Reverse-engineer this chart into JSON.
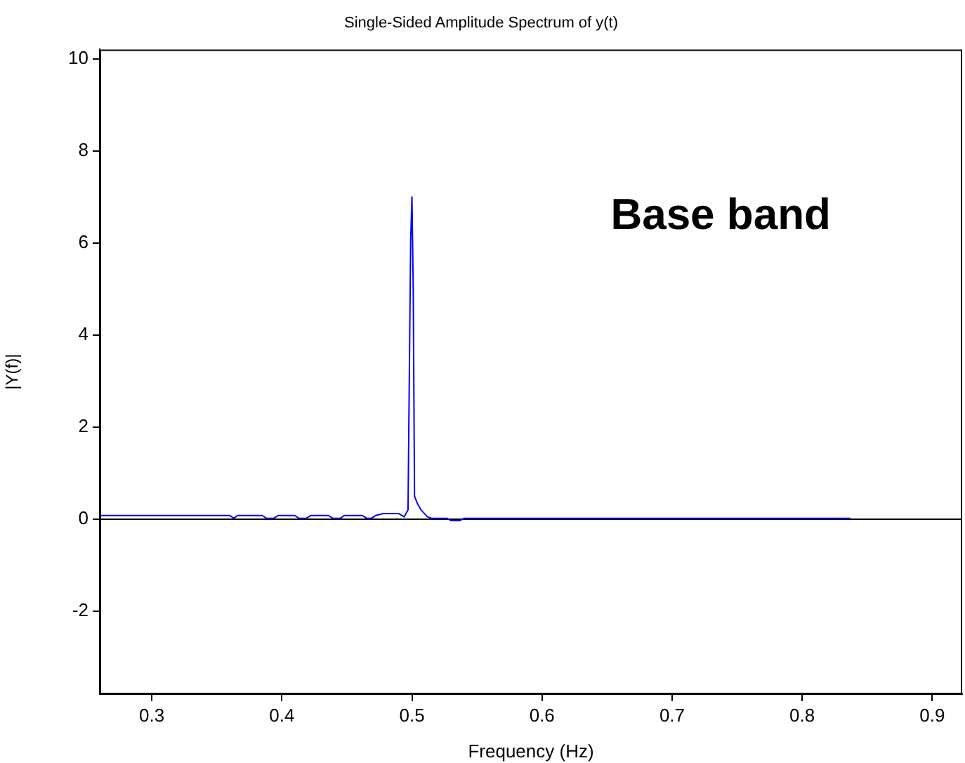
{
  "chart_data": {
    "type": "line",
    "title": "Single-Sided Amplitude Spectrum of y(t)",
    "xlabel": "Frequency (Hz)",
    "ylabel": "|Y(f)|",
    "annotations": [
      "Base band"
    ],
    "xlim": [
      0.26,
      0.923
    ],
    "xticks": [
      0.3,
      0.4,
      0.5,
      0.6,
      0.7,
      0.8,
      0.9
    ],
    "ylim": [
      -3.8,
      10.2
    ],
    "yticks": [
      -2,
      0,
      2,
      4,
      6,
      8,
      10
    ],
    "grid": false,
    "legend": false,
    "marker": "none",
    "line_style": "solid",
    "ref_lines": [
      {
        "axis": "y",
        "value": 0,
        "color": "#000000"
      }
    ],
    "series": [
      {
        "color": "#0000ff",
        "x": [
          0.26,
          0.36,
          0.363,
          0.366,
          0.385,
          0.388,
          0.394,
          0.397,
          0.41,
          0.413,
          0.419,
          0.422,
          0.436,
          0.439,
          0.445,
          0.448,
          0.462,
          0.465,
          0.469,
          0.472,
          0.478,
          0.49,
          0.494,
          0.497,
          0.499,
          0.5,
          0.501,
          0.502,
          0.504,
          0.507,
          0.512,
          0.515,
          0.527,
          0.53,
          0.537,
          0.54,
          0.837
        ],
        "values": [
          0.08,
          0.08,
          0.02,
          0.08,
          0.08,
          0.02,
          0.02,
          0.08,
          0.08,
          0.02,
          0.02,
          0.08,
          0.08,
          0.02,
          0.02,
          0.08,
          0.08,
          0.02,
          0.02,
          0.08,
          0.12,
          0.12,
          0.05,
          0.2,
          6,
          7,
          5,
          0.5,
          0.35,
          0.2,
          0.05,
          0.02,
          0.02,
          -0.03,
          -0.03,
          0.02,
          0.02
        ]
      }
    ]
  }
}
